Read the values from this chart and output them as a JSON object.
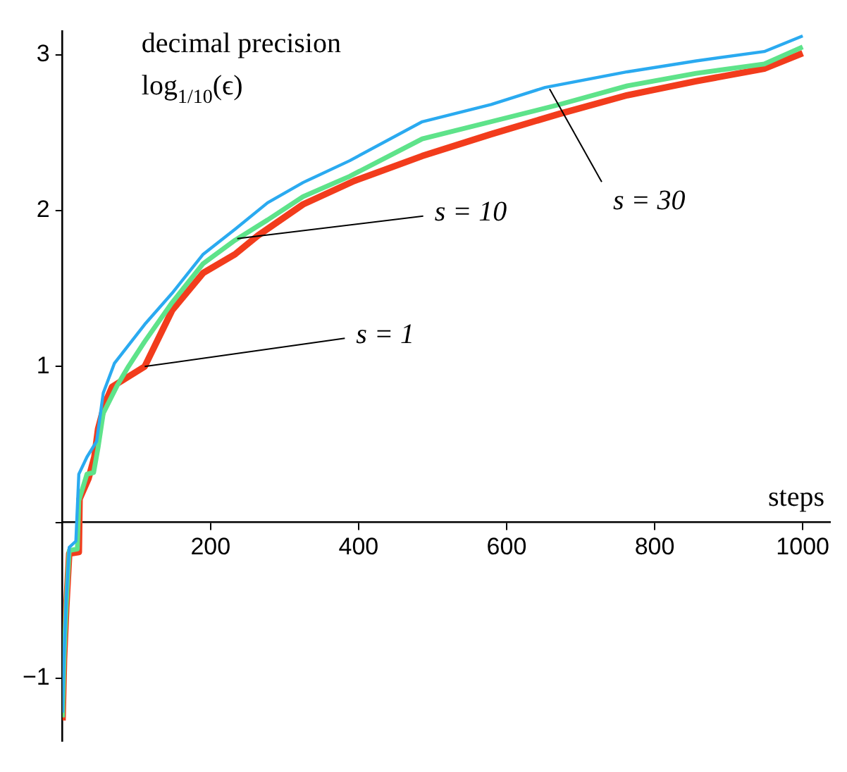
{
  "chart_data": {
    "type": "line",
    "xlabel": "steps",
    "ylabel": "decimal precision\nlog$_{1/10}$(ϵ)",
    "xlim": [
      0,
      1037
    ],
    "ylim": [
      -1.4,
      3.15
    ],
    "xticks": [
      200,
      400,
      600,
      800,
      1000
    ],
    "yticks": [
      {
        "value": -1,
        "label": "−1"
      },
      {
        "value": 0,
        "label": null
      },
      1,
      2,
      3
    ],
    "grid": false,
    "legend": false,
    "marker": "none",
    "line_style": "solid",
    "series": [
      {
        "color": "#2aaaf0",
        "x": [
          0,
          2,
          5,
          9,
          18,
          22,
          33,
          46,
          55,
          70,
          111,
          148,
          190,
          233,
          277,
          325,
          388,
          486,
          579,
          652,
          763,
          856,
          948,
          1000
        ],
        "values": [
          -1.22,
          -0.85,
          -0.5,
          -0.16,
          -0.12,
          0.31,
          0.42,
          0.52,
          0.83,
          1.02,
          1.27,
          1.47,
          1.72,
          1.88,
          2.05,
          2.18,
          2.32,
          2.57,
          2.68,
          2.79,
          2.89,
          2.96,
          3.02,
          3.12
        ]
      },
      {
        "color": "#5ee38a",
        "x": [
          0,
          2,
          5,
          9,
          20,
          22,
          33,
          42,
          48,
          55,
          74,
          89,
          111,
          148,
          190,
          233,
          277,
          325,
          388,
          486,
          579,
          671,
          763,
          856,
          948,
          1000
        ],
        "values": [
          -1.25,
          -0.87,
          -0.53,
          -0.18,
          -0.17,
          0.14,
          0.31,
          0.32,
          0.48,
          0.7,
          0.88,
          1.0,
          1.16,
          1.41,
          1.66,
          1.81,
          1.94,
          2.09,
          2.22,
          2.46,
          2.57,
          2.68,
          2.8,
          2.88,
          2.94,
          3.05
        ]
      },
      {
        "color": "#f23c1c",
        "x": [
          0,
          2,
          5,
          9,
          22,
          23,
          35,
          43,
          48,
          57,
          67,
          111,
          148,
          190,
          233,
          264,
          325,
          394,
          486,
          579,
          671,
          763,
          856,
          948,
          1000
        ],
        "values": [
          -1.27,
          -0.88,
          -0.55,
          -0.2,
          -0.19,
          0.15,
          0.28,
          0.42,
          0.6,
          0.76,
          0.87,
          1.0,
          1.36,
          1.6,
          1.72,
          1.84,
          2.04,
          2.19,
          2.35,
          2.49,
          2.62,
          2.74,
          2.83,
          2.91,
          3.01
        ]
      }
    ],
    "annotations": [
      {
        "text": "s = 1",
        "x": 111,
        "y": 1.0
      },
      {
        "text": "s = 10",
        "x": 236,
        "y": 1.82
      },
      {
        "text": "s = 30",
        "x": 658,
        "y": 2.78
      }
    ]
  }
}
